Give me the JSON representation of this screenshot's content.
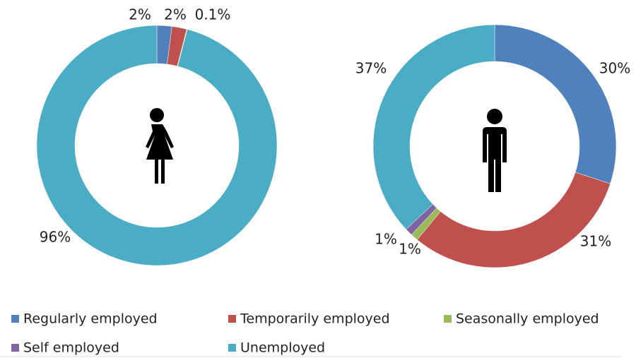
{
  "chart_data": [
    {
      "type": "donut",
      "categories": [
        "Regularly employed",
        "Temporarily employed",
        "Seasonally employed",
        "Self employed",
        "Unemployed"
      ],
      "values": [
        2,
        2,
        0.1,
        null,
        96
      ],
      "value_labels": [
        "2%",
        "2%",
        "0.1%",
        null,
        "96%"
      ],
      "colors": [
        "#4f81bd",
        "#c0504d",
        "#9bbb59",
        "#8064a2",
        "#4bacc6"
      ]
    },
    {
      "type": "donut",
      "categories": [
        "Regularly employed",
        "Temporarily employed",
        "Seasonally employed",
        "Self employed",
        "Unemployed"
      ],
      "values": [
        30,
        31,
        1,
        1,
        37
      ],
      "value_labels": [
        "30%",
        "31%",
        "1%",
        "1%",
        "37%"
      ],
      "colors": [
        "#4f81bd",
        "#c0504d",
        "#9bbb59",
        "#8064a2",
        "#4bacc6"
      ]
    }
  ],
  "legend": [
    {
      "name": "Regularly employed",
      "color": "#4f81bd"
    },
    {
      "name": "Temporarily employed",
      "color": "#c0504d"
    },
    {
      "name": "Seasonally employed",
      "color": "#9bbb59"
    },
    {
      "name": "Self employed",
      "color": "#8064a2"
    },
    {
      "name": "Unemployed",
      "color": "#4bacc6"
    }
  ]
}
